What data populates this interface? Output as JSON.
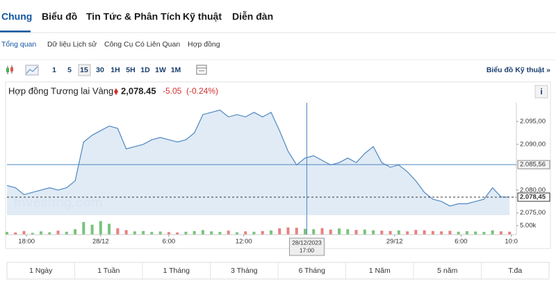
{
  "tabs": [
    "Chung",
    "Biểu đồ",
    "Tin Tức & Phân Tích",
    "Kỹ thuật",
    "Diễn đàn"
  ],
  "subnav": [
    "Tổng quan",
    "Dữ liệu Lịch sử",
    "Công Cụ Có Liên Quan",
    "Hợp đồng"
  ],
  "toolbar": {
    "intervals": [
      "1",
      "5",
      "15",
      "30",
      "1H",
      "5H",
      "1D",
      "1W",
      "1M"
    ],
    "technical_link": "Biểu đồ Kỹ thuật »"
  },
  "info_button": "i",
  "periods": [
    "1 Ngày",
    "1 Tuần",
    "1 Tháng",
    "3 Tháng",
    "6 Tháng",
    "1 Năm",
    "5 năm",
    "T.đa"
  ],
  "chart_data": {
    "type": "line",
    "title": "Hợp đồng Tương lai Vàng",
    "last_price": "2,078.45",
    "change": "-5.05",
    "change_pct": "(-0.24%)",
    "watermark": "Investing.com",
    "color": "#4f86c0",
    "fill": "#dbe8f4",
    "values": [
      2081,
      2080.5,
      2079,
      2079.5,
      2080,
      2080.5,
      2080,
      2080.5,
      2082,
      2090.5,
      2092,
      2093,
      2094,
      2093.5,
      2089,
      2089.5,
      2090,
      2091,
      2091.5,
      2091,
      2090.5,
      2091,
      2092.5,
      2096.5,
      2097,
      2097.5,
      2096,
      2096.5,
      2096,
      2097,
      2096,
      2097,
      2093,
      2088.5,
      2085.5,
      2087,
      2087.5,
      2086.5,
      2085.5,
      2086,
      2087,
      2086,
      2088,
      2089.5,
      2086,
      2085,
      2085.5,
      2084,
      2082,
      2079.5,
      2078,
      2077.5,
      2076.5,
      2077,
      2077,
      2077.5,
      2078,
      2080.5,
      2078.5,
      2078.45
    ],
    "volume": [
      1500,
      1200,
      2000,
      1000,
      1800,
      1300,
      2200,
      1600,
      3000,
      7000,
      5500,
      7500,
      6000,
      3500,
      2500,
      1800,
      2000,
      1500,
      1700,
      1400,
      1200,
      1600,
      2000,
      2500,
      1800,
      1500,
      2200,
      1300,
      1800,
      1600,
      2000,
      2300,
      3500,
      4000,
      3800,
      3200,
      3000,
      3600,
      2800,
      3400,
      3000,
      2600,
      2800,
      2400,
      2200,
      2000,
      2300,
      1800,
      2600,
      2400,
      2000,
      1800,
      2100,
      1600,
      1900,
      1700,
      1500,
      2400,
      1800,
      1600
    ],
    "up_color": "#4caf50",
    "down_color": "#e05555",
    "xlim": [
      0,
      59.8
    ],
    "ylim": [
      2074.5,
      2099.1
    ],
    "vlim": [
      0,
      10000
    ],
    "yticks": [
      {
        "value": 2075,
        "label": "2.075,00"
      },
      {
        "value": 2080,
        "label": "2.080,00"
      },
      {
        "value": 2090,
        "label": "2.090,00"
      },
      {
        "value": 2095,
        "label": "2.095,00"
      }
    ],
    "vticks": [
      {
        "value": 5000,
        "label": "5.00k"
      }
    ],
    "xticks": [
      {
        "value": 2.3,
        "label": "18:00"
      },
      {
        "value": 11,
        "label": "28/12"
      },
      {
        "value": 19,
        "label": "6:00"
      },
      {
        "value": 27.8,
        "label": "12:00"
      },
      {
        "value": 45.5,
        "label": "29/12"
      },
      {
        "value": 53.3,
        "label": "6:00"
      },
      {
        "value": 59.2,
        "label": "10:0"
      }
    ],
    "crosshair": {
      "x": 35.2,
      "x_label": [
        "28/12/2023",
        "17:00"
      ],
      "y": {
        "value": 2085.56,
        "label": "2.085,56"
      }
    },
    "last_marker": {
      "value": 2078.45,
      "label": "2.078,45"
    }
  }
}
